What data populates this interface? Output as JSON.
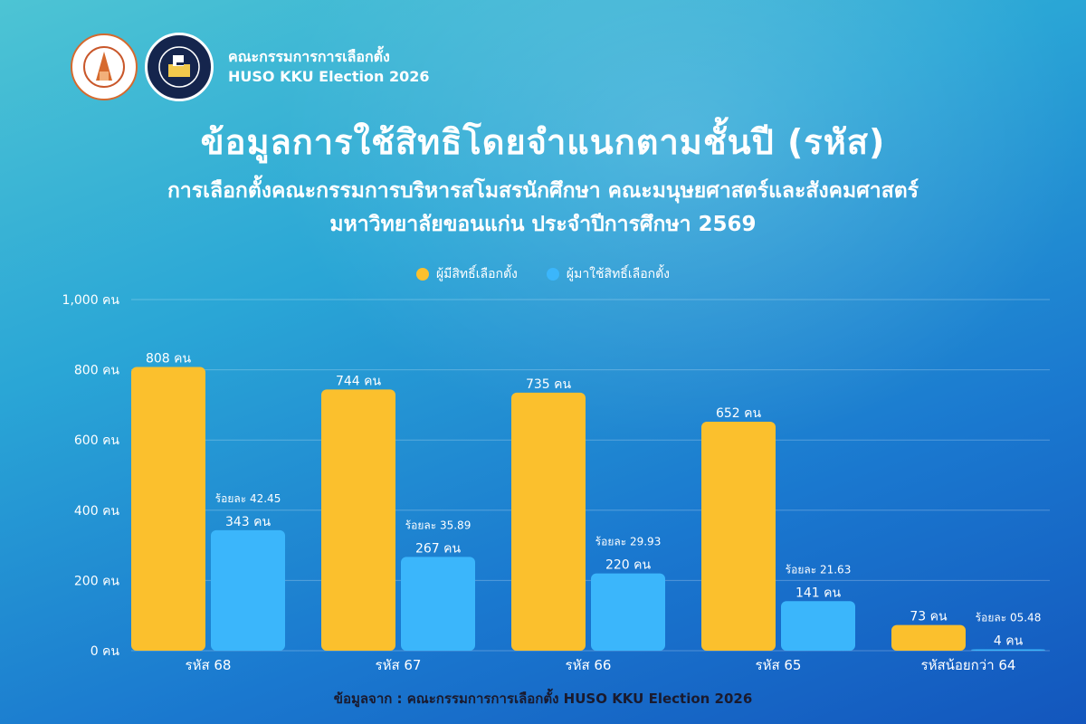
{
  "header": {
    "org_name": "คณะกรรมการการเลือกตั้ง",
    "org_sub": "HUSO KKU Election 2026"
  },
  "title": "ข้อมูลการใช้สิทธิโดยจำแนกตามชั้นปี (รหัส)",
  "subtitle_line1": "การเลือกตั้งคณะกรรมการบริหารสโมสรนักศึกษา  คณะมนุษยศาสตร์และสังคมศาสตร์",
  "subtitle_line2": "มหาวิทยาลัยขอนแก่น ประจำปีการศึกษา 2569",
  "footer": "ข้อมูลจาก : คณะกรรมการการเลือกตั้ง HUSO KKU Election 2026",
  "colors": {
    "eligible": "#fbc02d",
    "voted": "#3bb6fb",
    "grid": "rgba(255,255,255,0.25)"
  },
  "chart_data": {
    "type": "bar",
    "categories": [
      "รหัส 68",
      "รหัส 67",
      "รหัส 66",
      "รหัส 65",
      "รหัสน้อยกว่า 64"
    ],
    "series": [
      {
        "name": "ผู้มีสิทธิ์เลือกตั้ง",
        "values": [
          808,
          744,
          735,
          652,
          73
        ],
        "labels": [
          "808 คน",
          "744 คน",
          "735 คน",
          "652 คน",
          "73 คน"
        ]
      },
      {
        "name": "ผู้มาใช้สิทธิ์เลือกตั้ง",
        "values": [
          343,
          267,
          220,
          141,
          4
        ],
        "labels": [
          "343 คน",
          "267 คน",
          "220 คน",
          "141 คน",
          "4 คน"
        ]
      }
    ],
    "percent_labels": [
      "ร้อยละ 42.45",
      "ร้อยละ 35.89",
      "ร้อยละ 29.93",
      "ร้อยละ 21.63",
      "ร้อยละ 05.48"
    ],
    "yticks": [
      0,
      200,
      400,
      600,
      800,
      1000
    ],
    "ytick_labels": [
      "0 คน",
      "200 คน",
      "400 คน",
      "600 คน",
      "800 คน",
      "1,000 คน"
    ],
    "ylim": [
      0,
      1000
    ],
    "grid": true,
    "legend": "top-center"
  }
}
